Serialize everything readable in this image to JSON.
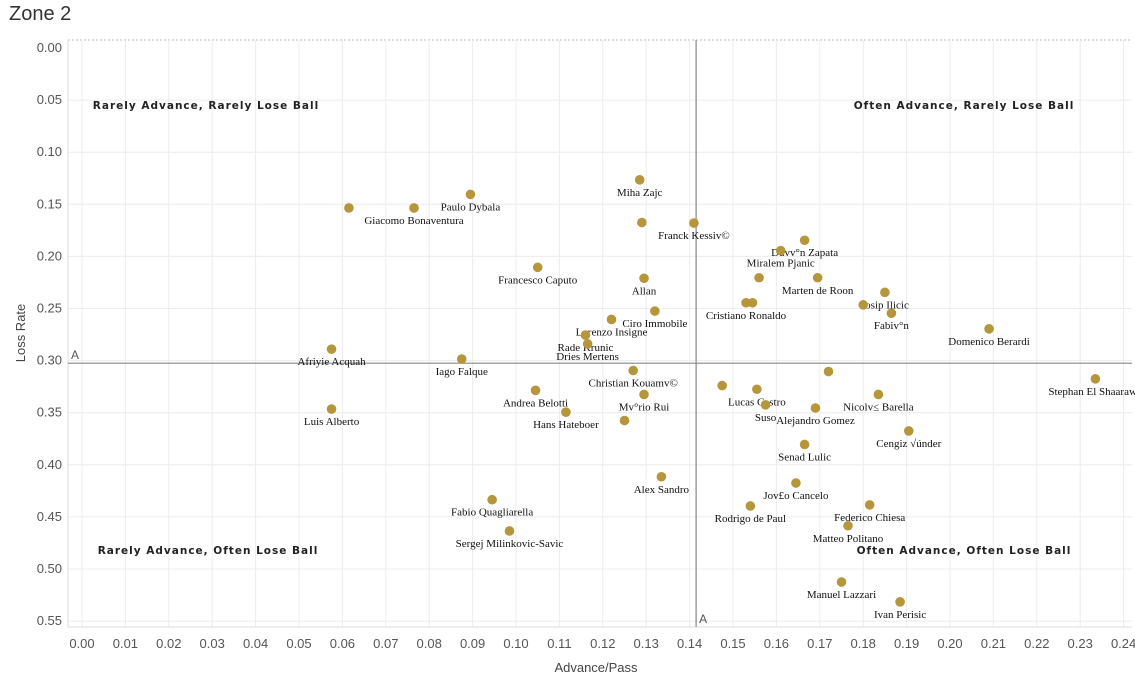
{
  "title": "Zone 2",
  "chart_data": {
    "type": "scatter",
    "title": "Zone 2",
    "xlabel": "Advance/Pass",
    "ylabel": "Loss Rate",
    "xlim": [
      0.0,
      0.24
    ],
    "ylim": [
      0.0,
      0.55
    ],
    "y_reversed": true,
    "x_ticks": [
      "0.00",
      "0.01",
      "0.02",
      "0.03",
      "0.04",
      "0.05",
      "0.06",
      "0.07",
      "0.08",
      "0.09",
      "0.10",
      "0.11",
      "0.12",
      "0.13",
      "0.14",
      "0.15",
      "0.16",
      "0.17",
      "0.18",
      "0.19",
      "0.20",
      "0.21",
      "0.22",
      "0.23",
      "0.24"
    ],
    "x_tick_values": [
      0.0,
      0.01,
      0.02,
      0.03,
      0.04,
      0.05,
      0.06,
      0.07,
      0.08,
      0.09,
      0.1,
      0.11,
      0.12,
      0.13,
      0.14,
      0.15,
      0.16,
      0.17,
      0.18,
      0.19,
      0.2,
      0.21,
      0.22,
      0.23,
      0.24
    ],
    "y_ticks": [
      "0.00",
      "0.05",
      "0.10",
      "0.15",
      "0.20",
      "0.25",
      "0.30",
      "0.35",
      "0.40",
      "0.45",
      "0.50",
      "0.55"
    ],
    "y_tick_values": [
      0.0,
      0.05,
      0.1,
      0.15,
      0.2,
      0.25,
      0.3,
      0.35,
      0.4,
      0.45,
      0.5,
      0.55
    ],
    "grid": true,
    "marker_color": "#b5963a",
    "reference_lines": [
      {
        "axis": "x",
        "value": 0.1415,
        "label": "A"
      },
      {
        "axis": "y",
        "value": 0.3025,
        "label": "A"
      }
    ],
    "quadrant_labels": [
      {
        "text": "Rarely Advance, Rarely Lose Ball",
        "position": "top-left"
      },
      {
        "text": "Often Advance, Rarely Lose Ball",
        "position": "top-right"
      },
      {
        "text": "Rarely Advance, Often Lose Ball",
        "position": "bottom-left"
      },
      {
        "text": "Often Advance, Often Lose Ball",
        "position": "bottom-right"
      }
    ],
    "points": [
      {
        "name": "Miha Zajc",
        "x": 0.1285,
        "y": 0.1265
      },
      {
        "name": "Paulo Dybala",
        "x": 0.0895,
        "y": 0.1405
      },
      {
        "name": "Giacomo Bonaventura",
        "x": 0.0765,
        "y": 0.1535
      },
      {
        "name": "",
        "x": 0.0615,
        "y": 0.1535
      },
      {
        "name": "Franck Kessiv©",
        "x": 0.141,
        "y": 0.168
      },
      {
        "name": "",
        "x": 0.129,
        "y": 0.1675
      },
      {
        "name": "Duvv°n Zapata",
        "x": 0.1665,
        "y": 0.1845
      },
      {
        "name": "Miralem Pjanic",
        "x": 0.161,
        "y": 0.1945
      },
      {
        "name": "Francesco Caputo",
        "x": 0.105,
        "y": 0.2105
      },
      {
        "name": "Allan",
        "x": 0.1295,
        "y": 0.221
      },
      {
        "name": "",
        "x": 0.156,
        "y": 0.2205
      },
      {
        "name": "Marten de Roon",
        "x": 0.1695,
        "y": 0.2205
      },
      {
        "name": "Josip Ilicic",
        "x": 0.185,
        "y": 0.2345
      },
      {
        "name": "Cristiano Ronaldo",
        "x": 0.153,
        "y": 0.2445
      },
      {
        "name": "",
        "x": 0.1545,
        "y": 0.2445
      },
      {
        "name": "",
        "x": 0.18,
        "y": 0.2465
      },
      {
        "name": "Fabiv°n",
        "x": 0.1865,
        "y": 0.2545
      },
      {
        "name": "Domenico Berardi",
        "x": 0.209,
        "y": 0.2695
      },
      {
        "name": "Ciro Immobile",
        "x": 0.132,
        "y": 0.2525
      },
      {
        "name": "Lorenzo Insigne",
        "x": 0.122,
        "y": 0.2605
      },
      {
        "name": "Rade Krunic",
        "x": 0.116,
        "y": 0.2755
      },
      {
        "name": "Dries Mertens",
        "x": 0.1165,
        "y": 0.284
      },
      {
        "name": "Afriyie Acquah",
        "x": 0.0575,
        "y": 0.289
      },
      {
        "name": "Iago Falque",
        "x": 0.0875,
        "y": 0.2985
      },
      {
        "name": "Christian Kouamv©",
        "x": 0.127,
        "y": 0.3095
      },
      {
        "name": "",
        "x": 0.172,
        "y": 0.3105
      },
      {
        "name": "Stephan El Shaarawy",
        "x": 0.2335,
        "y": 0.3175
      },
      {
        "name": "",
        "x": 0.1475,
        "y": 0.324
      },
      {
        "name": "Lucas Castro",
        "x": 0.1555,
        "y": 0.3275
      },
      {
        "name": "Andrea Belotti",
        "x": 0.1045,
        "y": 0.3285
      },
      {
        "name": "Mv°rio Rui",
        "x": 0.1295,
        "y": 0.3325
      },
      {
        "name": "Nicolv≤ Barella",
        "x": 0.1835,
        "y": 0.3325
      },
      {
        "name": "Suso",
        "x": 0.1575,
        "y": 0.3425
      },
      {
        "name": "Alejandro Gomez",
        "x": 0.169,
        "y": 0.3455
      },
      {
        "name": "Luis Alberto",
        "x": 0.0575,
        "y": 0.3465
      },
      {
        "name": "Hans Hateboer",
        "x": 0.1115,
        "y": 0.3495
      },
      {
        "name": "",
        "x": 0.125,
        "y": 0.3575
      },
      {
        "name": "Cengiz √únder",
        "x": 0.1905,
        "y": 0.3675
      },
      {
        "name": "Senad Lulic",
        "x": 0.1665,
        "y": 0.3805
      },
      {
        "name": "Alex Sandro",
        "x": 0.1335,
        "y": 0.4115
      },
      {
        "name": "Jov£o Cancelo",
        "x": 0.1645,
        "y": 0.4175
      },
      {
        "name": "Fabio Quagliarella",
        "x": 0.0945,
        "y": 0.4335
      },
      {
        "name": "Federico Chiesa",
        "x": 0.1815,
        "y": 0.4385
      },
      {
        "name": "Rodrigo de Paul",
        "x": 0.154,
        "y": 0.4395
      },
      {
        "name": "Matteo Politano",
        "x": 0.1765,
        "y": 0.4585
      },
      {
        "name": "Sergej Milinkovic-Savic",
        "x": 0.0985,
        "y": 0.4635
      },
      {
        "name": "Manuel Lazzari",
        "x": 0.175,
        "y": 0.5125
      },
      {
        "name": "Ivan Perisic",
        "x": 0.1885,
        "y": 0.5315
      }
    ]
  }
}
